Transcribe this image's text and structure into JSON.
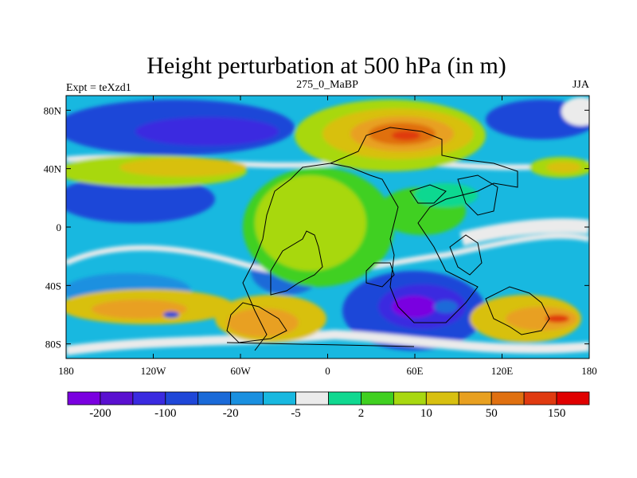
{
  "chart_data": {
    "type": "heatmap",
    "title": "Height perturbation at 500 hPa (in m)",
    "subtitle_left": "Expt = teXzd1",
    "subtitle_center": "275_0_MaBP",
    "subtitle_right": "JJA",
    "x_ticks": [
      "180",
      "120W",
      "60W",
      "0",
      "60E",
      "120E",
      "180"
    ],
    "y_ticks": [
      "80N",
      "40N",
      "0",
      "40S",
      "80S"
    ],
    "x_range_deg": [
      -180,
      180
    ],
    "y_range_deg": [
      -90,
      90
    ],
    "colorbar": {
      "colors": [
        "#7a00e0",
        "#5a10d0",
        "#3a2ae0",
        "#1f47d8",
        "#1a6ad8",
        "#1a90e0",
        "#18b8e0",
        "#ebebeb",
        "#10d890",
        "#40d020",
        "#a8d810",
        "#d8c010",
        "#e8a020",
        "#e07010",
        "#e03a10",
        "#e00000"
      ],
      "labels": [
        "-200",
        "-100",
        "-20",
        "-5",
        "2",
        "10",
        "50",
        "150"
      ]
    }
  }
}
